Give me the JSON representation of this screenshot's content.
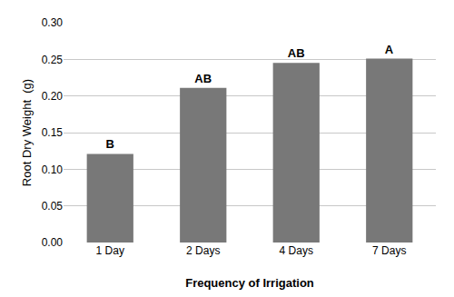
{
  "chart_data": {
    "type": "bar",
    "categories": [
      "1 Day",
      "2 Days",
      "4 Days",
      "7 Days"
    ],
    "values": [
      0.121,
      0.211,
      0.245,
      0.251
    ],
    "annotations": [
      "B",
      "AB",
      "AB",
      "A"
    ],
    "color": "#787878",
    "xlabel": "Frequency of Irrigation",
    "ylabel": "Root Dry Weight  (g)",
    "ylim": [
      0.0,
      0.3
    ],
    "yticks": [
      {
        "value": 0.0,
        "label": "0.00"
      },
      0.05,
      {
        "value": 0.1,
        "label": "0.10"
      },
      0.15,
      {
        "value": 0.2,
        "label": "0.20"
      },
      0.25,
      {
        "value": 0.3,
        "label": "0.30"
      }
    ],
    "grid": true
  }
}
